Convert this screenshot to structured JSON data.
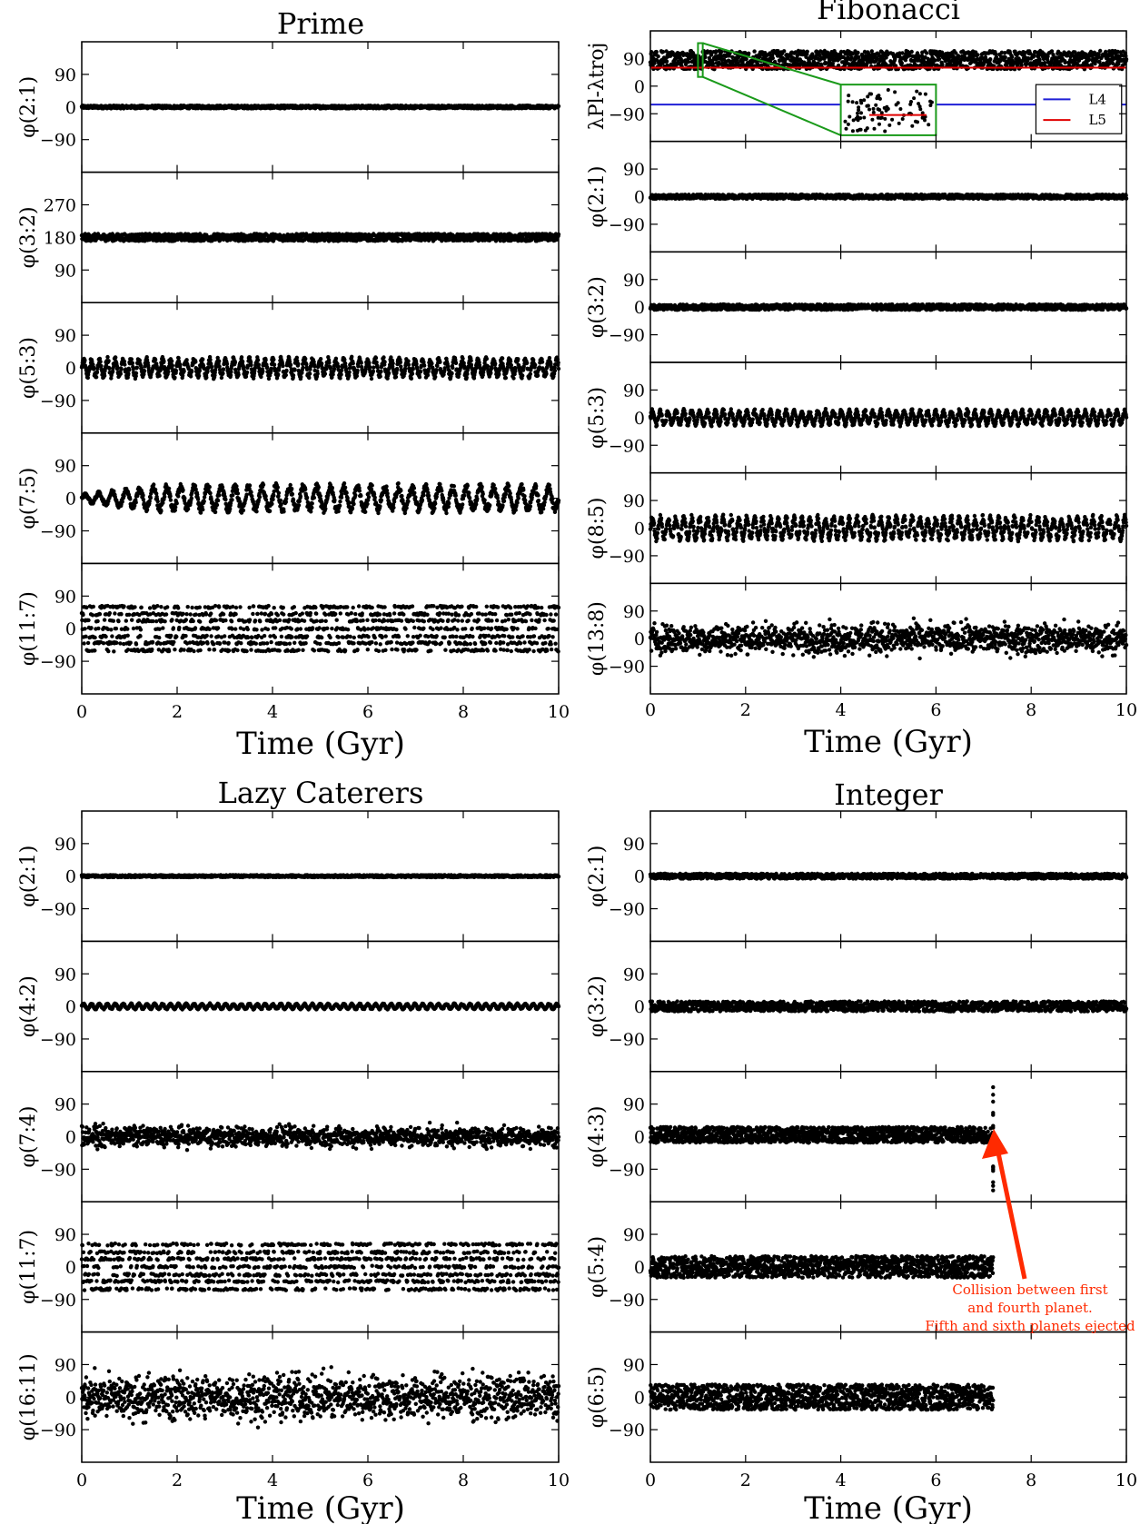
{
  "figure": {
    "xlabel": "Time (Gyr)",
    "xticks": [
      "0",
      "2",
      "4",
      "6",
      "8",
      "10"
    ],
    "xlim": [
      0,
      10
    ],
    "colors": {
      "points": "#000000",
      "L4": "#1f1fd6",
      "L5": "#e00000",
      "zoom": "#1a9a1a",
      "annotation": "#ff2a00"
    }
  },
  "chart_data": [
    {
      "type": "scatter",
      "title": "Prime",
      "xlabel": "Time (Gyr)",
      "panels": [
        {
          "ylabel": "φ(2:1)",
          "yticks": [
            "90",
            "0",
            "−90"
          ],
          "ylim": [
            -180,
            180
          ],
          "center": 0,
          "half_width": 4,
          "pattern": "tight",
          "x_range": [
            0,
            10
          ]
        },
        {
          "ylabel": "φ(3:2)",
          "yticks": [
            "270",
            "180",
            "90"
          ],
          "ylim": [
            0,
            360
          ],
          "center": 180,
          "half_width": 10,
          "pattern": "band",
          "x_range": [
            0,
            10
          ]
        },
        {
          "ylabel": "φ(5:3)",
          "yticks": [
            "90",
            "0",
            "−90"
          ],
          "ylim": [
            -180,
            180
          ],
          "center": 0,
          "half_width": 28,
          "pattern": "oscillating",
          "x_range": [
            0,
            10
          ]
        },
        {
          "ylabel": "φ(7:5)",
          "yticks": [
            "90",
            "0",
            "−90"
          ],
          "ylim": [
            -180,
            180
          ],
          "center": 0,
          "half_width": 38,
          "pattern": "growing",
          "x_range": [
            0,
            10
          ]
        },
        {
          "ylabel": "φ(11:7)",
          "yticks": [
            "90",
            "0",
            "−90"
          ],
          "ylim": [
            -180,
            180
          ],
          "center": 0,
          "half_width": 60,
          "pattern": "discrete",
          "levels": [
            -60,
            -40,
            -22,
            0,
            22,
            40,
            60
          ],
          "x_range": [
            0,
            10
          ]
        }
      ]
    },
    {
      "type": "scatter",
      "title": "Fibonacci",
      "xlabel": "Time (Gyr)",
      "panels": [
        {
          "ylabel": "λPl-λtroj",
          "yticks": [
            "90",
            "0",
            "−90"
          ],
          "ylim": [
            -180,
            180
          ],
          "center": 85,
          "half_width": 55,
          "pattern": "trojan",
          "L4": -60,
          "L5": 60,
          "legend": [
            "L4",
            "L5"
          ],
          "legend_position": "right",
          "inset_x": [
            1.0,
            1.1
          ],
          "x_range": [
            0,
            10
          ]
        },
        {
          "ylabel": "φ(2:1)",
          "yticks": [
            "90",
            "0",
            "−90"
          ],
          "ylim": [
            -180,
            180
          ],
          "center": 0,
          "half_width": 7,
          "pattern": "band",
          "x_range": [
            0,
            10
          ]
        },
        {
          "ylabel": "φ(3:2)",
          "yticks": [
            "90",
            "0",
            "−90"
          ],
          "ylim": [
            -180,
            180
          ],
          "center": 0,
          "half_width": 9,
          "pattern": "band",
          "x_range": [
            0,
            10
          ]
        },
        {
          "ylabel": "φ(5:3)",
          "yticks": [
            "90",
            "0",
            "−90"
          ],
          "ylim": [
            -180,
            180
          ],
          "center": 0,
          "half_width": 26,
          "pattern": "oscillating",
          "x_range": [
            0,
            10
          ]
        },
        {
          "ylabel": "φ(8:5)",
          "yticks": [
            "90",
            "0",
            "−90"
          ],
          "ylim": [
            -180,
            180
          ],
          "center": 0,
          "half_width": 40,
          "pattern": "oscillating",
          "x_range": [
            0,
            10
          ]
        },
        {
          "ylabel": "φ(13:8)",
          "yticks": [
            "90",
            "0",
            "−90"
          ],
          "ylim": [
            -180,
            180
          ],
          "center": 0,
          "half_width": 70,
          "pattern": "noisy",
          "x_range": [
            0,
            10
          ]
        }
      ]
    },
    {
      "type": "scatter",
      "title": "Lazy Caterers",
      "xlabel": "Time (Gyr)",
      "panels": [
        {
          "ylabel": "φ(2:1)",
          "yticks": [
            "90",
            "0",
            "−90"
          ],
          "ylim": [
            -180,
            180
          ],
          "center": 0,
          "half_width": 3,
          "pattern": "tight",
          "x_range": [
            0,
            10
          ]
        },
        {
          "ylabel": "φ(4:2)",
          "yticks": [
            "90",
            "0",
            "−90"
          ],
          "ylim": [
            -180,
            180
          ],
          "center": 0,
          "half_width": 8,
          "pattern": "oscillating",
          "x_range": [
            0,
            10
          ]
        },
        {
          "ylabel": "φ(7:4)",
          "yticks": [
            "90",
            "0",
            "−90"
          ],
          "ylim": [
            -180,
            180
          ],
          "center": 0,
          "half_width": 40,
          "pattern": "noisy",
          "x_range": [
            0,
            10
          ]
        },
        {
          "ylabel": "φ(11:7)",
          "yticks": [
            "90",
            "0",
            "−90"
          ],
          "ylim": [
            -180,
            180
          ],
          "center": 0,
          "half_width": 65,
          "pattern": "discrete",
          "levels": [
            -62,
            -40,
            -22,
            0,
            22,
            40,
            62
          ],
          "x_range": [
            0,
            10
          ]
        },
        {
          "ylabel": "φ(16:11)",
          "yticks": [
            "90",
            "0",
            "−90"
          ],
          "ylim": [
            -180,
            180
          ],
          "center": 0,
          "half_width": 90,
          "pattern": "noisy",
          "x_range": [
            0,
            10
          ]
        }
      ]
    },
    {
      "type": "scatter",
      "title": "Integer",
      "xlabel": "Time (Gyr)",
      "panels": [
        {
          "ylabel": "φ(2:1)",
          "yticks": [
            "90",
            "0",
            "−90"
          ],
          "ylim": [
            -180,
            180
          ],
          "center": 0,
          "half_width": 7,
          "pattern": "band",
          "x_range": [
            0,
            10
          ]
        },
        {
          "ylabel": "φ(3:2)",
          "yticks": [
            "90",
            "0",
            "−90"
          ],
          "ylim": [
            -180,
            180
          ],
          "center": 0,
          "half_width": 14,
          "pattern": "band",
          "x_range": [
            0,
            10
          ]
        },
        {
          "ylabel": "φ(4:3)",
          "yticks": [
            "90",
            "0",
            "−90"
          ],
          "ylim": [
            -180,
            180
          ],
          "center": 5,
          "half_width": 22,
          "pattern": "band",
          "x_range": [
            0,
            7.2
          ],
          "spike_x": 7.2,
          "spike_range": [
            -160,
            140
          ]
        },
        {
          "ylabel": "φ(5:4)",
          "yticks": [
            "90",
            "0",
            "−90"
          ],
          "ylim": [
            -180,
            180
          ],
          "center": 0,
          "half_width": 30,
          "pattern": "band",
          "x_range": [
            0,
            7.2
          ]
        },
        {
          "ylabel": "φ(6:5)",
          "yticks": [
            "90",
            "0",
            "−90"
          ],
          "ylim": [
            -180,
            180
          ],
          "center": 0,
          "half_width": 35,
          "pattern": "band",
          "x_range": [
            0,
            7.2
          ]
        }
      ],
      "annotation": {
        "lines": [
          "Collision between first",
          "and fourth planet.",
          "Fifth and sixth planets ejected"
        ],
        "arrow_to_x": 7.2,
        "arrow_to_y": 15
      }
    }
  ]
}
